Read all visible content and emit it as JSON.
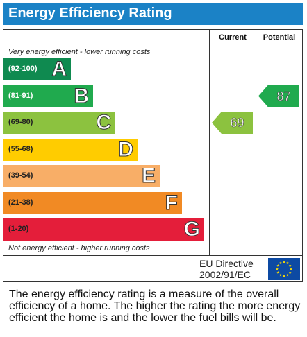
{
  "title": "Energy Efficiency Rating",
  "header": {
    "current_label": "Current",
    "potential_label": "Potential"
  },
  "top_caption": "Very energy efficient - lower running costs",
  "bottom_caption": "Not energy efficient - higher running costs",
  "eu": {
    "line1": "EU Directive",
    "line2": "2002/91/EC"
  },
  "description": "The energy efficiency rating is a measure of the overall efficiency of a home. The higher the rating the more energy efficient the home is and the lower the fuel bills will be.",
  "colors": {
    "title_bar": "#1b82c6",
    "eu_flag": "#0d4aa3",
    "eu_stars": "#ffdd00"
  },
  "chart_data": {
    "type": "bar",
    "categories": [
      "A",
      "B",
      "C",
      "D",
      "E",
      "F",
      "G"
    ],
    "ranges": [
      "(92-100)",
      "(81-91)",
      "(69-80)",
      "(55-68)",
      "(39-54)",
      "(21-38)",
      "(1-20)"
    ],
    "colors": [
      "#0f8a50",
      "#20aa4e",
      "#8cc23f",
      "#ffcc00",
      "#f8ae67",
      "#f18a24",
      "#e41e3a"
    ],
    "current": {
      "value": 69,
      "band": "C"
    },
    "potential": {
      "value": 87,
      "band": "B"
    }
  }
}
